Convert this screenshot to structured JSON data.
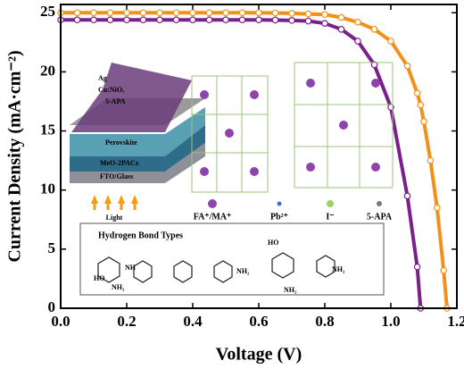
{
  "chart_data": {
    "type": "line",
    "x_label": "Voltage (V)",
    "y_label": "Current Density (mA·cm⁻²)",
    "x": [
      0,
      0.05,
      0.1,
      0.15,
      0.2,
      0.25,
      0.3,
      0.35,
      0.4,
      0.45,
      0.5,
      0.55,
      0.6,
      0.65,
      0.7,
      0.75,
      0.8,
      0.85,
      0.9,
      0.95,
      1.0,
      1.05,
      1.08,
      1.09,
      1.1,
      1.12,
      1.14,
      1.16,
      1.17
    ],
    "series": [
      {
        "color": "#7b1f8c",
        "values": [
          24.4,
          24.4,
          24.4,
          24.4,
          24.4,
          24.4,
          24.4,
          24.4,
          24.4,
          24.4,
          24.4,
          24.4,
          24.4,
          24.38,
          24.35,
          24.3,
          24.1,
          23.6,
          22.6,
          20.6,
          17,
          9.5,
          3.5,
          0,
          null,
          null,
          null,
          null,
          null
        ]
      },
      {
        "color": "#f39019",
        "values": [
          25,
          25,
          25,
          25,
          25,
          25,
          25,
          25,
          25,
          25,
          25,
          25,
          25,
          24.98,
          24.95,
          24.9,
          24.85,
          24.6,
          24.2,
          23.6,
          22.6,
          20.5,
          18.2,
          17.2,
          15.8,
          12.5,
          8.5,
          3.2,
          0
        ]
      }
    ],
    "xlim": [
      0,
      1.2
    ],
    "xticks": [
      {
        "value": 0,
        "label": "0.0"
      },
      0.2,
      0.4,
      0.6,
      0.8,
      {
        "value": 1,
        "label": "1.0"
      },
      1.2
    ],
    "ylim": [
      0,
      25.7
    ],
    "yticks": [
      0,
      5,
      10,
      15,
      20,
      25
    ],
    "inset": {
      "layers": [
        "Ag",
        "Cu:NiOₓ",
        "5-APA",
        "Perovskite",
        "MeO-2PACz",
        "FTO/Glass"
      ],
      "light": "Light",
      "legend": [
        "FA⁺/MA⁺",
        "Pb²⁺",
        "I⁻",
        "5-APA"
      ],
      "box_title": "Hydrogen Bond Types",
      "groups": [
        "HO",
        "NH",
        "NH₂",
        "NH₂",
        "HO",
        "NH₂",
        "NH₂"
      ]
    }
  }
}
